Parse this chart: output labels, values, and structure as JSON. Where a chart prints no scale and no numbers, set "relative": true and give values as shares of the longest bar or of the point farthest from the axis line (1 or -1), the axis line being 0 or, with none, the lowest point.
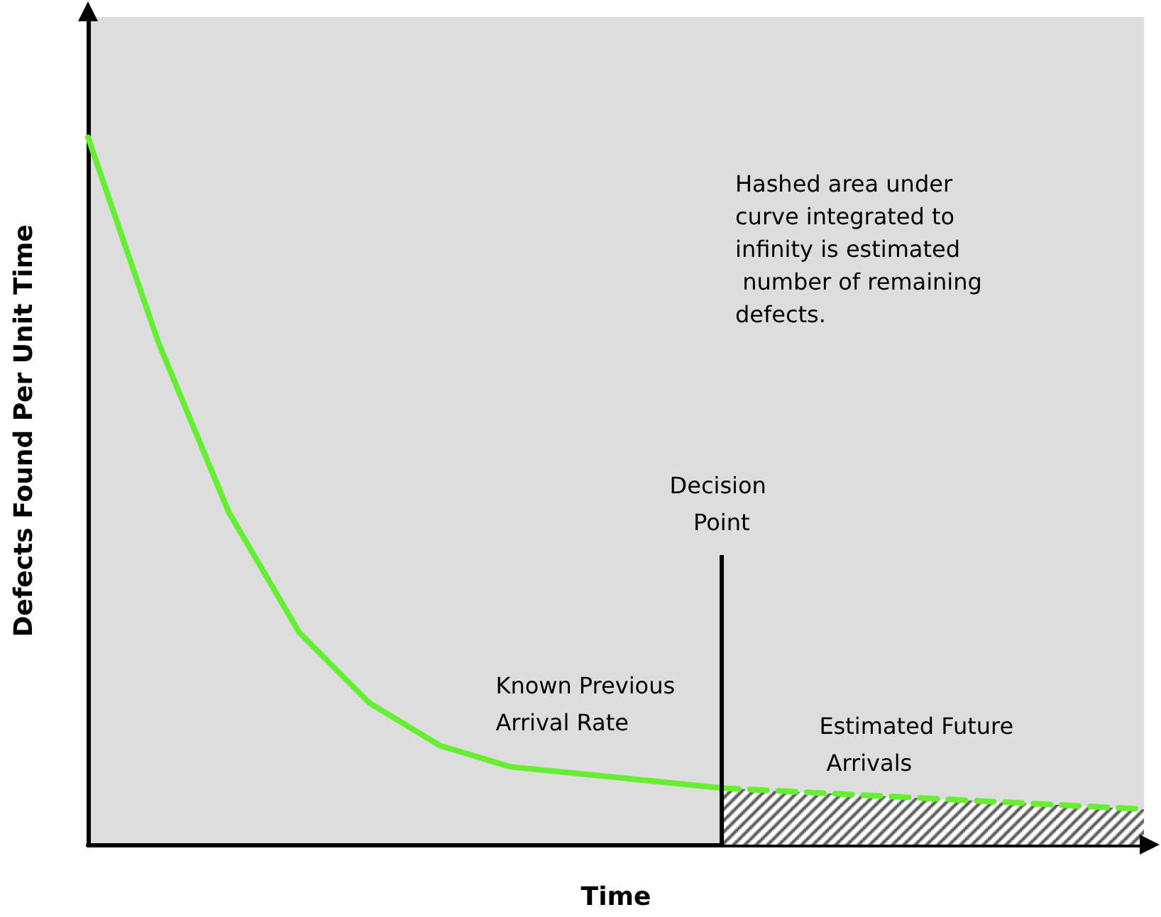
{
  "chart_data": {
    "type": "line",
    "relative": true,
    "xlabel": "Time",
    "ylabel": "Defects Found Per Unit Time",
    "categories": [
      null,
      null,
      null,
      null,
      null,
      null,
      null,
      null,
      null,
      null,
      null,
      null,
      null,
      null,
      null,
      null
    ],
    "series": [
      {
        "name": "Known Previous Arrival Rate",
        "color": "#66ee33",
        "line_style": "solid",
        "values": [
          1.0,
          0.71,
          0.47,
          0.3,
          0.2,
          0.14,
          0.11,
          0.1,
          0.09,
          0.08,
          null,
          null,
          null,
          null,
          null,
          null
        ]
      },
      {
        "name": "Estimated Future Arrivals",
        "type": "area",
        "color": "#66ee33",
        "line_style": "dashed",
        "values": [
          null,
          null,
          null,
          null,
          null,
          null,
          null,
          null,
          null,
          0.08,
          0.075,
          0.07,
          0.065,
          0.06,
          0.055,
          0.05
        ]
      }
    ],
    "ref_lines": [
      {
        "axis": "x",
        "label": "Decision Point",
        "color": "#000000"
      }
    ],
    "annotations": [
      "Hashed area under curve integrated to infinity is estimated number of remaining defects."
    ],
    "legend": false,
    "grid": false,
    "marker": "none"
  }
}
